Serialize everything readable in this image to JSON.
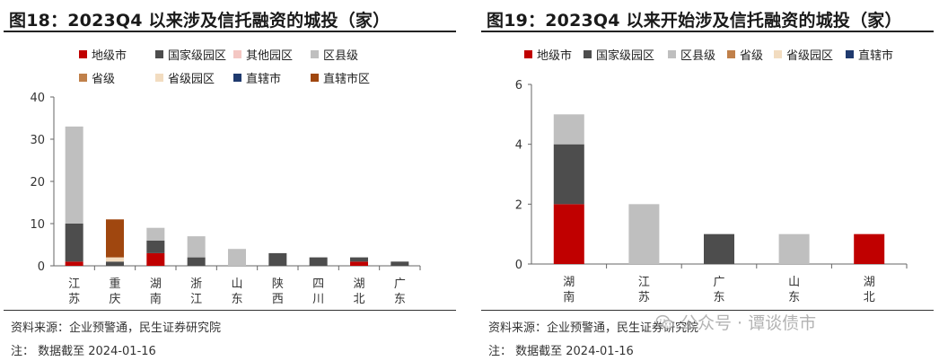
{
  "panels": [
    {
      "title": "图18：2023Q4 以来涉及信托融资的城投（家）",
      "source_note": "资料来源：企业预警通，民生证券研究院",
      "date_note": "注：  数据截至 2024-01-16",
      "legend": [
        {
          "label": "地级市",
          "color": "#c00000"
        },
        {
          "label": "国家级园区",
          "color": "#4d4d4d"
        },
        {
          "label": "其他园区",
          "color": "#f4c7c3"
        },
        {
          "label": "区县级",
          "color": "#bfbfbf"
        },
        {
          "label": "省级",
          "color": "#c0804a"
        },
        {
          "label": "省级园区",
          "color": "#f2dcc0"
        },
        {
          "label": "直辖市",
          "color": "#1f3a6e"
        },
        {
          "label": "直辖市区",
          "color": "#a0470f"
        }
      ]
    },
    {
      "title": "图19：2023Q4 以来开始涉及信托融资的城投（家）",
      "source_note": "资料来源：企业预警通，民生证券研究院",
      "date_note": "注：  数据截至 2024-01-16",
      "legend": [
        {
          "label": "地级市",
          "color": "#c00000"
        },
        {
          "label": "国家级园区",
          "color": "#4d4d4d"
        },
        {
          "label": "区县级",
          "color": "#bfbfbf"
        },
        {
          "label": "省级",
          "color": "#c0804a"
        },
        {
          "label": "省级园区",
          "color": "#f2dcc0"
        },
        {
          "label": "直辖市",
          "color": "#1f3a6e"
        }
      ]
    }
  ],
  "watermark": {
    "text": "公众号 · 谭谈债市",
    "icon": "wechat-icon"
  },
  "chart_data": [
    {
      "type": "bar",
      "stacked": true,
      "categories": [
        "江苏",
        "重庆",
        "湖南",
        "浙江",
        "山东",
        "陕西",
        "四川",
        "湖北",
        "广东"
      ],
      "ylim": [
        0,
        40
      ],
      "yticks": [
        0,
        10,
        20,
        30,
        40
      ],
      "series": [
        {
          "name": "地级市",
          "color": "#c00000",
          "values": [
            1,
            0,
            3,
            0,
            0,
            0,
            0,
            1,
            0
          ]
        },
        {
          "name": "国家级园区",
          "color": "#4d4d4d",
          "values": [
            9,
            1,
            3,
            2,
            0,
            3,
            2,
            1,
            1
          ]
        },
        {
          "name": "其他园区",
          "color": "#f4c7c3",
          "values": [
            0,
            0,
            0,
            0,
            0,
            0,
            0,
            0,
            0
          ]
        },
        {
          "name": "区县级",
          "color": "#bfbfbf",
          "values": [
            23,
            0,
            3,
            5,
            4,
            0,
            0,
            0,
            0
          ]
        },
        {
          "name": "省级",
          "color": "#c0804a",
          "values": [
            0,
            0,
            0,
            0,
            0,
            0,
            0,
            0,
            0
          ]
        },
        {
          "name": "省级园区",
          "color": "#f2dcc0",
          "values": [
            0,
            1,
            0,
            0,
            0,
            0,
            0,
            0,
            0
          ]
        },
        {
          "name": "直辖市",
          "color": "#1f3a6e",
          "values": [
            0,
            0,
            0,
            0,
            0,
            0,
            0,
            0,
            0
          ]
        },
        {
          "name": "直辖市区",
          "color": "#a0470f",
          "values": [
            0,
            9,
            0,
            0,
            0,
            0,
            0,
            0,
            0
          ]
        }
      ],
      "grid": false
    },
    {
      "type": "bar",
      "stacked": true,
      "categories": [
        "湖南",
        "江苏",
        "广东",
        "山东",
        "湖北"
      ],
      "ylim": [
        0,
        6
      ],
      "yticks": [
        0,
        2,
        4,
        6
      ],
      "series": [
        {
          "name": "地级市",
          "color": "#c00000",
          "values": [
            2,
            0,
            0,
            0,
            1
          ]
        },
        {
          "name": "国家级园区",
          "color": "#4d4d4d",
          "values": [
            2,
            0,
            1,
            0,
            0
          ]
        },
        {
          "name": "区县级",
          "color": "#bfbfbf",
          "values": [
            1,
            2,
            0,
            1,
            0
          ]
        },
        {
          "name": "省级",
          "color": "#c0804a",
          "values": [
            0,
            0,
            0,
            0,
            0
          ]
        },
        {
          "name": "省级园区",
          "color": "#f2dcc0",
          "values": [
            0,
            0,
            0,
            0,
            0
          ]
        },
        {
          "name": "直辖市",
          "color": "#1f3a6e",
          "values": [
            0,
            0,
            0,
            0,
            0
          ]
        }
      ],
      "grid": false
    }
  ]
}
